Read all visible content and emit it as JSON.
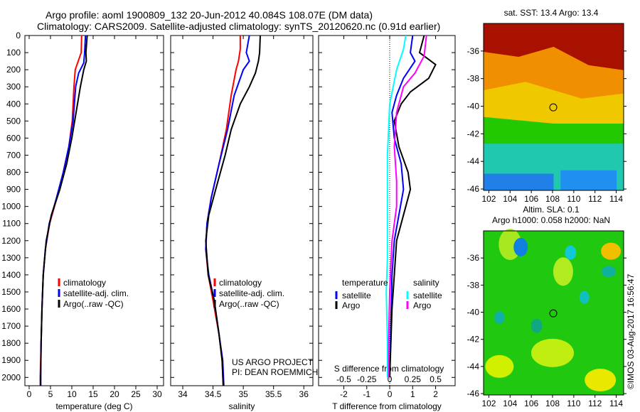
{
  "title": {
    "line1": "Argo profile: aoml 1900809_132 20-Jun-2012 40.084S 108.07E (DM data)",
    "line2": "Climatology: CARS2009. Satellite-adjusted climatology: synTS_20120620.nc (0.91d earlier)"
  },
  "colors": {
    "climatology": "#ff0000",
    "satellite": "#0000ff",
    "argo": "#000000",
    "sal_satellite": "#00ffff",
    "sal_argo": "#ff00ff"
  },
  "credit": {
    "project": "US ARGO PROJECT",
    "pi": "PI: DEAN ROEMMICH",
    "stamp": "©IMOS 03-Aug-2017 16:56:47"
  },
  "chart_data": [
    {
      "type": "line",
      "name": "temperature",
      "xlabel": "temperature (deg C)",
      "ylabel": "depth",
      "xlim": [
        -1,
        31.5
      ],
      "ylim": [
        2140,
        0
      ],
      "xticks": [
        0,
        5,
        10,
        15,
        20,
        25,
        30
      ],
      "yticks": [
        0,
        100,
        200,
        300,
        400,
        500,
        600,
        700,
        800,
        900,
        1000,
        1100,
        1200,
        1300,
        1400,
        1500,
        1600,
        1700,
        1800,
        1900,
        2000
      ],
      "legend": [
        "climatology",
        "satellite-adj. clim.",
        "Argo(..raw -QC)"
      ],
      "series": [
        {
          "name": "climatology",
          "color": "#ff0000",
          "points": [
            [
              12.3,
              0
            ],
            [
              12.2,
              100
            ],
            [
              11.5,
              150
            ],
            [
              10.8,
              200
            ],
            [
              10.5,
              300
            ],
            [
              10.1,
              500
            ],
            [
              9.3,
              650
            ],
            [
              8,
              800
            ],
            [
              6.5,
              950
            ],
            [
              4.8,
              1100
            ],
            [
              3.8,
              1250
            ],
            [
              3.3,
              1400
            ],
            [
              3,
              1600
            ],
            [
              2.8,
              1800
            ],
            [
              2.6,
              2000
            ],
            [
              2.6,
              2060
            ]
          ]
        },
        {
          "name": "satellite-adj. clim.",
          "color": "#0000ff",
          "points": [
            [
              13.2,
              0
            ],
            [
              13,
              100
            ],
            [
              12.8,
              160
            ],
            [
              11.6,
              220
            ],
            [
              10.9,
              300
            ],
            [
              10.3,
              500
            ],
            [
              9.3,
              650
            ],
            [
              8,
              800
            ],
            [
              6.4,
              950
            ],
            [
              4.7,
              1100
            ],
            [
              3.8,
              1250
            ],
            [
              3.3,
              1400
            ],
            [
              3,
              1600
            ],
            [
              2.8,
              1800
            ],
            [
              2.7,
              2000
            ],
            [
              2.7,
              2060
            ]
          ]
        },
        {
          "name": "Argo(..raw -QC)",
          "color": "#000000",
          "points": [
            [
              13.6,
              0
            ],
            [
              13.3,
              100
            ],
            [
              13.4,
              150
            ],
            [
              12.8,
              200
            ],
            [
              12,
              300
            ],
            [
              11,
              450
            ],
            [
              10,
              600
            ],
            [
              8.8,
              750
            ],
            [
              7.2,
              900
            ],
            [
              5.2,
              1050
            ],
            [
              4,
              1200
            ],
            [
              3.3,
              1400
            ],
            [
              3,
              1600
            ],
            [
              2.8,
              1800
            ],
            [
              2.7,
              2000
            ],
            [
              2.7,
              2060
            ]
          ]
        }
      ]
    },
    {
      "type": "line",
      "name": "salinity",
      "xlabel": "salinity",
      "ylabel": "depth",
      "xlim": [
        33.8,
        36.15
      ],
      "ylim": [
        2140,
        0
      ],
      "xticks": [
        34,
        34.5,
        35,
        35.5,
        36
      ],
      "legend": [
        "climatology",
        "satellite-adj. clim.",
        "Argo(..raw -QC)"
      ],
      "series": [
        {
          "name": "climatology",
          "color": "#ff0000",
          "points": [
            [
              34.95,
              0
            ],
            [
              34.95,
              80
            ],
            [
              34.92,
              150
            ],
            [
              34.88,
              200
            ],
            [
              34.8,
              350
            ],
            [
              34.72,
              550
            ],
            [
              34.6,
              750
            ],
            [
              34.47,
              950
            ],
            [
              34.4,
              1100
            ],
            [
              34.38,
              1250
            ],
            [
              34.42,
              1400
            ],
            [
              34.5,
              1550
            ],
            [
              34.6,
              1750
            ],
            [
              34.65,
              1900
            ],
            [
              34.67,
              2060
            ]
          ]
        },
        {
          "name": "satellite-adj. clim.",
          "color": "#0000ff",
          "points": [
            [
              35.1,
              0
            ],
            [
              35.05,
              100
            ],
            [
              35.1,
              150
            ],
            [
              35.0,
              200
            ],
            [
              34.85,
              350
            ],
            [
              34.74,
              550
            ],
            [
              34.6,
              750
            ],
            [
              34.47,
              950
            ],
            [
              34.4,
              1100
            ],
            [
              34.38,
              1250
            ],
            [
              34.43,
              1400
            ],
            [
              34.52,
              1550
            ],
            [
              34.6,
              1750
            ],
            [
              34.66,
              1900
            ],
            [
              34.68,
              2060
            ]
          ]
        },
        {
          "name": "Argo(..raw -QC)",
          "color": "#000000",
          "points": [
            [
              35.28,
              0
            ],
            [
              35.27,
              100
            ],
            [
              35.25,
              150
            ],
            [
              35.2,
              220
            ],
            [
              35.1,
              300
            ],
            [
              34.95,
              400
            ],
            [
              34.8,
              550
            ],
            [
              34.7,
              700
            ],
            [
              34.56,
              880
            ],
            [
              34.43,
              1050
            ],
            [
              34.38,
              1200
            ],
            [
              34.42,
              1400
            ],
            [
              34.52,
              1550
            ],
            [
              34.6,
              1750
            ],
            [
              34.65,
              1900
            ],
            [
              34.67,
              2060
            ]
          ]
        }
      ]
    },
    {
      "type": "line",
      "name": "difference",
      "xlabel": "T difference from climatology",
      "x2label": "S difference from climatology",
      "xlim": [
        -3.1,
        2.85
      ],
      "ylim": [
        2140,
        0
      ],
      "xticks": [
        -2,
        -1,
        0,
        1,
        2
      ],
      "x2ticks": [
        "-0.5",
        "-0.25",
        "0",
        "0.25",
        "0.5"
      ],
      "x2values": [
        -2,
        -1,
        0,
        1,
        2
      ],
      "legend": {
        "temperature": "temperature",
        "salinity": "salinity",
        "satellite": "satellite",
        "argo": "Argo"
      },
      "series": [
        {
          "name": "T satellite",
          "color": "#0000ff",
          "points": [
            [
              1,
              0
            ],
            [
              0.9,
              100
            ],
            [
              1.1,
              150
            ],
            [
              0.6,
              250
            ],
            [
              0.3,
              350
            ],
            [
              0.1,
              450
            ],
            [
              0.2,
              600
            ],
            [
              0.5,
              750
            ],
            [
              0.6,
              900
            ],
            [
              0.4,
              1050
            ],
            [
              0.2,
              1200
            ],
            [
              0.1,
              1400
            ],
            [
              0.05,
              1700
            ],
            [
              0,
              2000
            ]
          ]
        },
        {
          "name": "T Argo",
          "color": "#000000",
          "points": [
            [
              1.5,
              0
            ],
            [
              1.3,
              100
            ],
            [
              2,
              170
            ],
            [
              1.7,
              250
            ],
            [
              0.9,
              330
            ],
            [
              0.5,
              400
            ],
            [
              0.2,
              500
            ],
            [
              0.4,
              650
            ],
            [
              0.8,
              800
            ],
            [
              0.9,
              900
            ],
            [
              0.6,
              1050
            ],
            [
              0.3,
              1200
            ],
            [
              0.2,
              1400
            ],
            [
              0.1,
              1600
            ],
            [
              0.05,
              1800
            ],
            [
              0,
              2000
            ]
          ]
        },
        {
          "name": "S satellite",
          "color": "#00ffff",
          "points": [
            [
              0.7,
              0
            ],
            [
              0.6,
              80
            ],
            [
              0.3,
              200
            ],
            [
              0,
              400
            ],
            [
              -0.1,
              700
            ],
            [
              -0.1,
              1000
            ],
            [
              -0.1,
              1300
            ],
            [
              -0.15,
              1500
            ],
            [
              -0.1,
              1800
            ],
            [
              -0.1,
              2000
            ]
          ]
        },
        {
          "name": "S Argo",
          "color": "#ff00ff",
          "points": [
            [
              1.6,
              0
            ],
            [
              1.5,
              120
            ],
            [
              1.1,
              220
            ],
            [
              0.6,
              300
            ],
            [
              0.3,
              450
            ],
            [
              0.2,
              650
            ],
            [
              0.3,
              850
            ],
            [
              0.3,
              1000
            ],
            [
              0.1,
              1200
            ],
            [
              0,
              1500
            ],
            [
              -0.05,
              1800
            ],
            [
              -0.05,
              2000
            ]
          ]
        }
      ]
    },
    {
      "type": "heatmap",
      "name": "sst-map",
      "title": "sat. SST: 13.4  Argo: 13.4",
      "xlim": [
        101.5,
        114.7
      ],
      "ylim": [
        -46.1,
        -34
      ],
      "xticks": [
        102,
        104,
        106,
        108,
        110,
        112,
        114
      ],
      "yticks": [
        -36,
        -38,
        -40,
        -42,
        -44,
        -46
      ],
      "marker": [
        108.07,
        -40.084
      ]
    },
    {
      "type": "heatmap",
      "name": "sla-map",
      "title": "Altim. SLA: 0.1",
      "subtitle": "Argo h1000: 0.058 h2000: NaN",
      "xlim": [
        101.5,
        114.7
      ],
      "ylim": [
        -46.1,
        -34
      ],
      "xticks": [
        102,
        104,
        106,
        108,
        110,
        112,
        114
      ],
      "yticks": [
        -36,
        -38,
        -40,
        -42,
        -44,
        -46
      ],
      "marker": [
        108.07,
        -40.084
      ]
    }
  ]
}
